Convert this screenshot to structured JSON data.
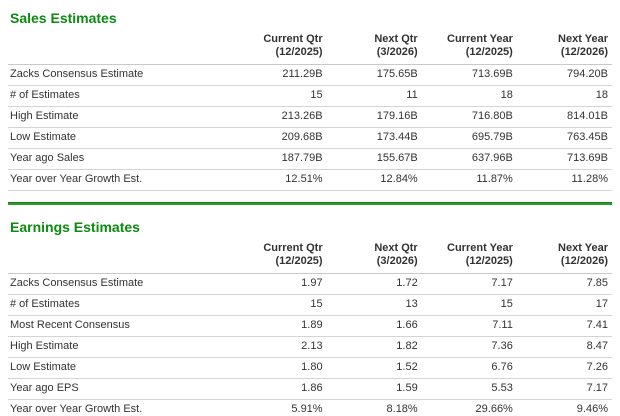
{
  "page": {
    "accent_green": "#0c8a12",
    "divider_green": "#2e9b2e"
  },
  "sections": [
    {
      "title": "Sales Estimates",
      "columns": [
        {
          "label": "Current Qtr",
          "period": "(12/2025)"
        },
        {
          "label": "Next Qtr",
          "period": "(3/2026)"
        },
        {
          "label": "Current Year",
          "period": "(12/2025)"
        },
        {
          "label": "Next Year",
          "period": "(12/2026)"
        }
      ],
      "rows": [
        {
          "label": "Zacks Consensus Estimate",
          "values": [
            "211.29B",
            "175.65B",
            "713.69B",
            "794.20B"
          ]
        },
        {
          "label": "# of Estimates",
          "values": [
            "15",
            "11",
            "18",
            "18"
          ]
        },
        {
          "label": "High Estimate",
          "values": [
            "213.26B",
            "179.16B",
            "716.80B",
            "814.01B"
          ]
        },
        {
          "label": "Low Estimate",
          "values": [
            "209.68B",
            "173.44B",
            "695.79B",
            "763.45B"
          ]
        },
        {
          "label": "Year ago Sales",
          "values": [
            "187.79B",
            "155.67B",
            "637.96B",
            "713.69B"
          ]
        },
        {
          "label": "Year over Year Growth Est.",
          "values": [
            "12.51%",
            "12.84%",
            "11.87%",
            "11.28%"
          ]
        }
      ]
    },
    {
      "title": "Earnings Estimates",
      "columns": [
        {
          "label": "Current Qtr",
          "period": "(12/2025)"
        },
        {
          "label": "Next Qtr",
          "period": "(3/2026)"
        },
        {
          "label": "Current Year",
          "period": "(12/2025)"
        },
        {
          "label": "Next Year",
          "period": "(12/2026)"
        }
      ],
      "rows": [
        {
          "label": "Zacks Consensus Estimate",
          "values": [
            "1.97",
            "1.72",
            "7.17",
            "7.85"
          ]
        },
        {
          "label": "# of Estimates",
          "values": [
            "15",
            "13",
            "15",
            "17"
          ]
        },
        {
          "label": "Most Recent Consensus",
          "values": [
            "1.89",
            "1.66",
            "7.11",
            "7.41"
          ]
        },
        {
          "label": "High Estimate",
          "values": [
            "2.13",
            "1.82",
            "7.36",
            "8.47"
          ]
        },
        {
          "label": "Low Estimate",
          "values": [
            "1.80",
            "1.52",
            "6.76",
            "7.26"
          ]
        },
        {
          "label": "Year ago EPS",
          "values": [
            "1.86",
            "1.59",
            "5.53",
            "7.17"
          ]
        },
        {
          "label": "Year over Year Growth Est.",
          "values": [
            "5.91%",
            "8.18%",
            "29.66%",
            "9.46%"
          ]
        }
      ]
    }
  ]
}
